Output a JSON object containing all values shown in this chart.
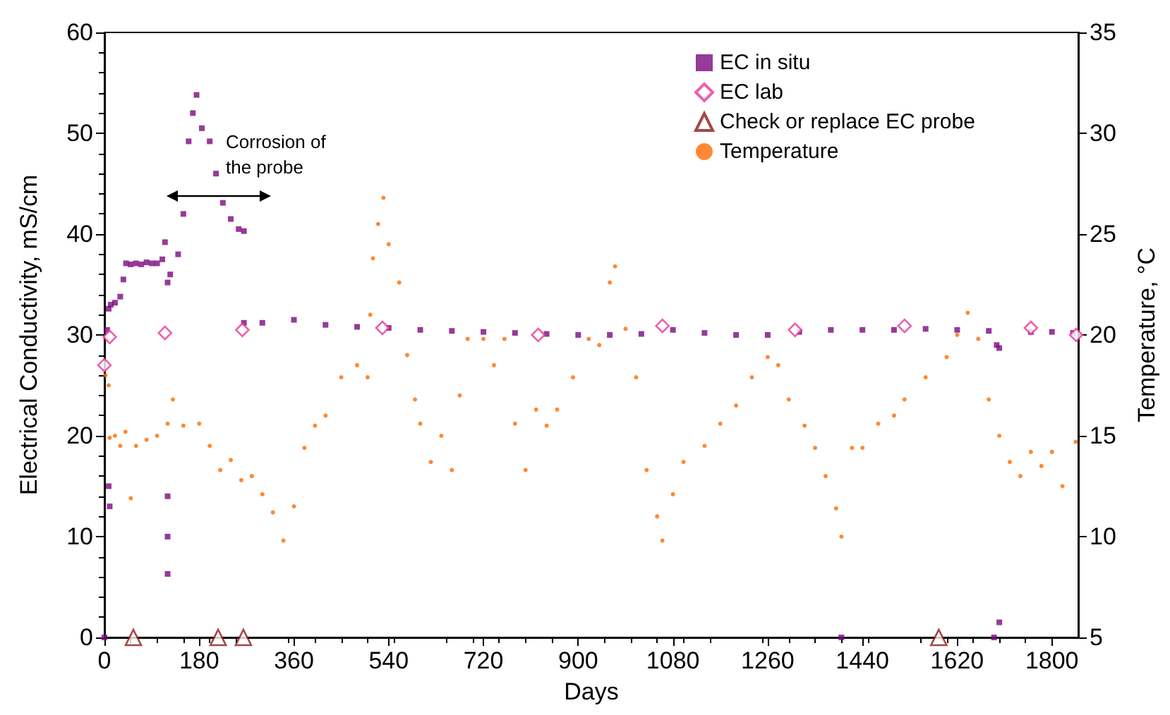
{
  "chart_data": {
    "type": "scatter",
    "xlabel": "Days",
    "ylabel": "Electrical Conductivity, mS/cm",
    "y2label": "Temperature, °C",
    "xlim": [
      0,
      1850
    ],
    "xticks": [
      0,
      180,
      360,
      540,
      720,
      900,
      1080,
      1260,
      1440,
      1620,
      1800
    ],
    "ylim": [
      0,
      60
    ],
    "yticks": [
      0,
      10,
      20,
      30,
      40,
      50,
      60
    ],
    "y2lim": [
      5,
      35
    ],
    "y2ticks": [
      5,
      10,
      15,
      20,
      25,
      30,
      35
    ],
    "grid": false,
    "legend": "top right",
    "annotations": [
      "Corrosion of the probe"
    ],
    "series": [
      {
        "name": "EC in situ",
        "color": "#7b0a7f",
        "marker": "square",
        "x": [
          0,
          5,
          8,
          8,
          10,
          12,
          20,
          30,
          36,
          41,
          50,
          60,
          70,
          80,
          90,
          100,
          110,
          115,
          120,
          120,
          120,
          120,
          125,
          140,
          150,
          160,
          168,
          175,
          185,
          200,
          212,
          225,
          240,
          255,
          265,
          265,
          300,
          360,
          420,
          480,
          540,
          600,
          660,
          720,
          780,
          840,
          900,
          960,
          1020,
          1080,
          1140,
          1200,
          1260,
          1320,
          1380,
          1400,
          1440,
          1500,
          1560,
          1620,
          1680,
          1690,
          1695,
          1700,
          1700,
          1760,
          1800,
          1840
        ],
        "values": [
          0,
          30.5,
          15,
          32.6,
          13,
          33,
          33.2,
          33.8,
          35.5,
          37.1,
          37,
          37.1,
          37,
          37.2,
          37.1,
          37.1,
          37.5,
          39.2,
          35.2,
          6.3,
          10,
          14,
          36,
          38,
          42,
          49.2,
          52,
          53.8,
          50.5,
          49.2,
          46,
          43.1,
          41.5,
          40.5,
          40.3,
          31.2,
          31.2,
          31.5,
          31,
          30.8,
          30.7,
          30.5,
          30.4,
          30.3,
          30.2,
          30.1,
          30,
          30,
          30.1,
          30.5,
          30.2,
          30,
          30,
          30.3,
          30.5,
          0,
          30.5,
          30.5,
          30.6,
          30.5,
          30.4,
          0,
          29,
          28.7,
          1.5,
          30.3,
          30.3,
          30.2
        ]
      },
      {
        "name": "EC lab",
        "color": "#e8389a",
        "marker": "diamond",
        "x": [
          0,
          10,
          115,
          262,
          528,
          824,
          1060,
          1312,
          1520,
          1760,
          1846
        ],
        "values": [
          27,
          29.8,
          30.2,
          30.5,
          30.7,
          30,
          30.9,
          30.5,
          30.9,
          30.7,
          30
        ]
      },
      {
        "name": "Check or replace EC probe",
        "color": "#8b1a1a",
        "marker": "triangle",
        "x": [
          55,
          216,
          264,
          1585
        ],
        "values": [
          0,
          0,
          0,
          0
        ]
      },
      {
        "name": "Temperature",
        "color": "#ff6a00",
        "marker": "circle",
        "axis": "y2",
        "x": [
          2,
          5,
          8,
          10,
          20,
          30,
          40,
          50,
          60,
          80,
          100,
          120,
          130,
          150,
          180,
          200,
          220,
          240,
          260,
          280,
          300,
          320,
          340,
          360,
          380,
          400,
          420,
          450,
          480,
          500,
          505,
          510,
          520,
          530,
          540,
          560,
          575,
          590,
          600,
          620,
          640,
          660,
          675,
          690,
          720,
          740,
          760,
          780,
          800,
          820,
          840,
          860,
          890,
          920,
          940,
          960,
          970,
          990,
          1010,
          1030,
          1050,
          1060,
          1080,
          1100,
          1140,
          1170,
          1200,
          1230,
          1260,
          1280,
          1300,
          1330,
          1350,
          1370,
          1390,
          1400,
          1420,
          1440,
          1470,
          1500,
          1520,
          1560,
          1600,
          1620,
          1640,
          1660,
          1680,
          1700,
          1720,
          1740,
          1760,
          1780,
          1800,
          1820,
          1845
        ],
        "values": [
          18,
          19.8,
          17.5,
          14.9,
          15,
          14.5,
          15.2,
          11.9,
          14.5,
          14.8,
          15,
          15.6,
          16.8,
          15.5,
          15.6,
          14.5,
          13.3,
          13.8,
          12.8,
          13,
          12.1,
          11.2,
          9.8,
          11.5,
          14.4,
          15.5,
          16,
          17.9,
          18.5,
          17.9,
          21,
          23.8,
          25.5,
          26.8,
          24.5,
          22.6,
          19,
          16.8,
          15.6,
          13.7,
          15,
          13.3,
          17,
          19.8,
          19.8,
          18.5,
          19.8,
          15.6,
          13.3,
          16.3,
          15.5,
          16.3,
          17.9,
          19.8,
          19.5,
          22.6,
          23.4,
          20.3,
          17.9,
          13.3,
          11,
          9.8,
          12.1,
          13.7,
          14.5,
          15.6,
          16.5,
          17.9,
          18.9,
          18.5,
          16.8,
          15.5,
          14.4,
          13,
          11.4,
          10,
          14.4,
          14.4,
          15.6,
          16,
          16.8,
          17.9,
          18.9,
          20,
          21.1,
          19.8,
          16.8,
          15,
          13.7,
          13,
          14.2,
          13.5,
          14.2,
          12.5,
          14.7
        ]
      }
    ]
  }
}
